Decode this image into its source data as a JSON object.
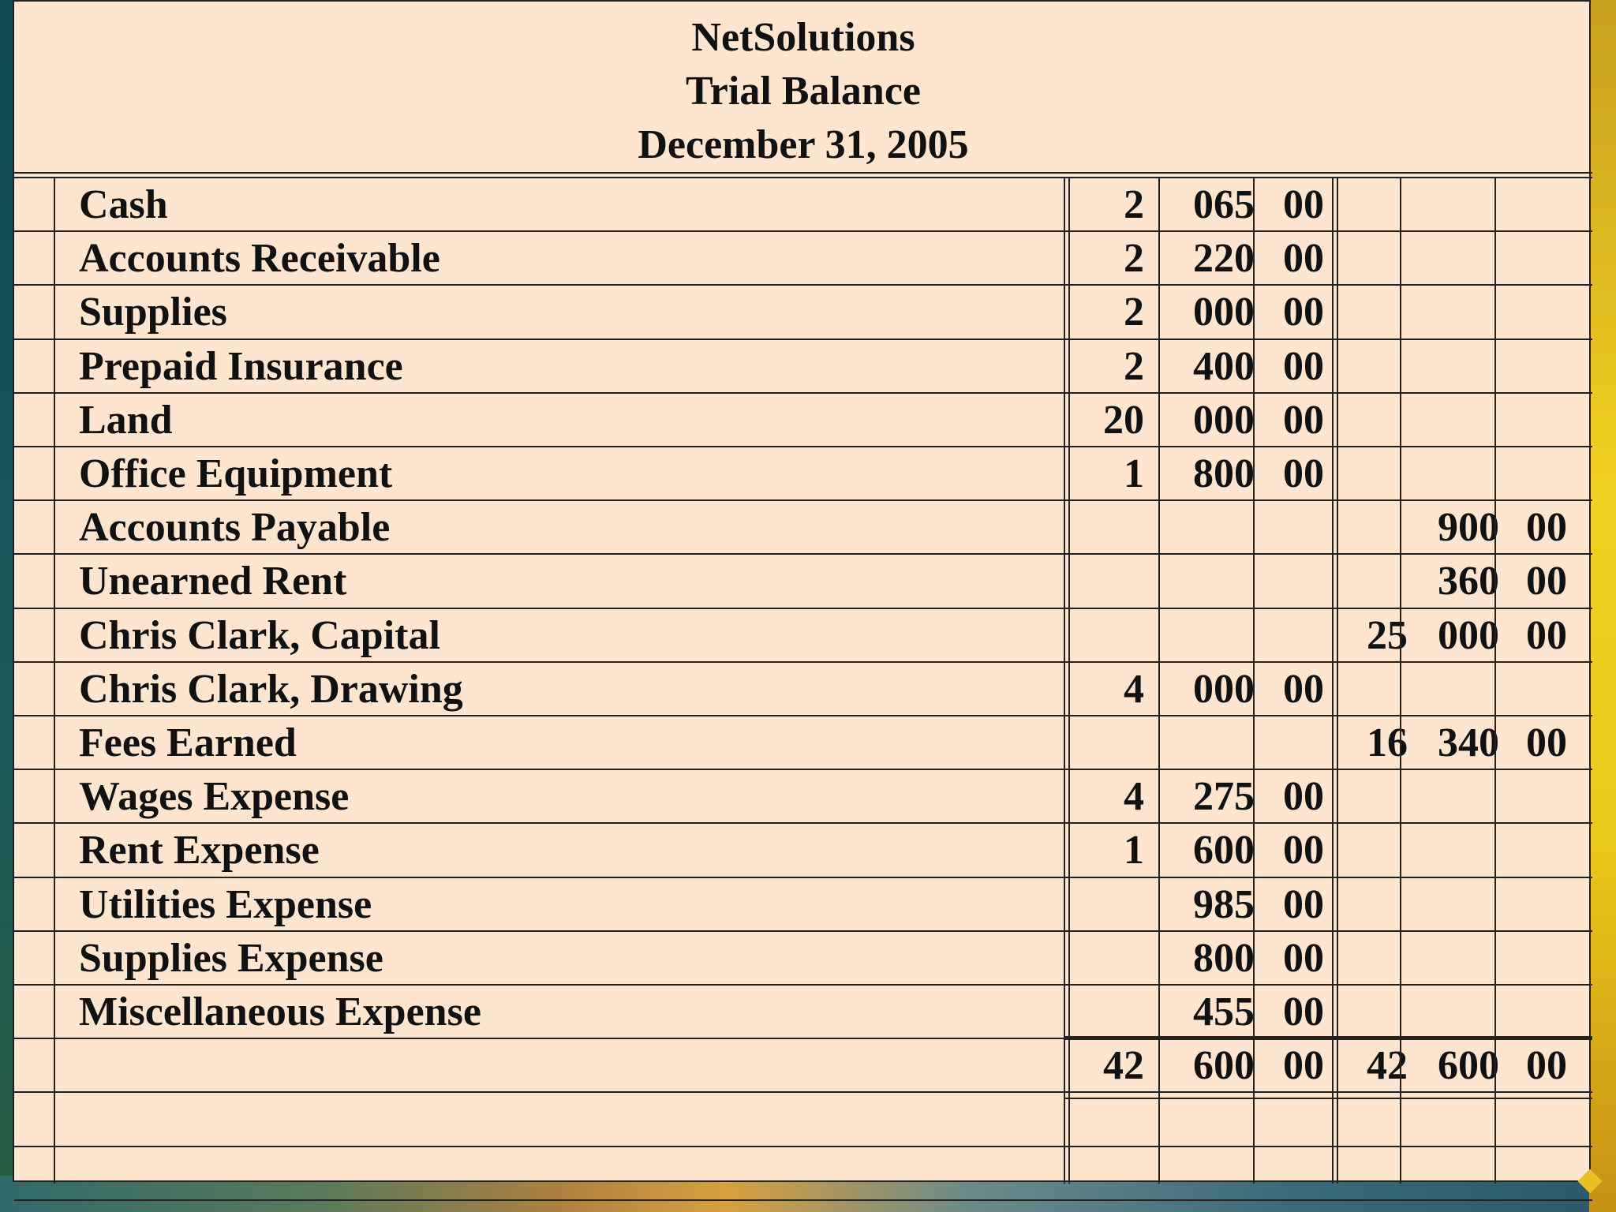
{
  "header": {
    "company": "NetSolutions",
    "report": "Trial Balance",
    "date": "December 31, 2005"
  },
  "rows": [
    {
      "account": "Cash",
      "debit": [
        "2",
        "065",
        "00"
      ],
      "credit": [
        "",
        "",
        ""
      ]
    },
    {
      "account": "Accounts Receivable",
      "debit": [
        "2",
        "220",
        "00"
      ],
      "credit": [
        "",
        "",
        ""
      ]
    },
    {
      "account": "Supplies",
      "debit": [
        "2",
        "000",
        "00"
      ],
      "credit": [
        "",
        "",
        ""
      ]
    },
    {
      "account": "Prepaid Insurance",
      "debit": [
        "2",
        "400",
        "00"
      ],
      "credit": [
        "",
        "",
        ""
      ]
    },
    {
      "account": "Land",
      "debit": [
        "20",
        "000",
        "00"
      ],
      "credit": [
        "",
        "",
        ""
      ]
    },
    {
      "account": "Office Equipment",
      "debit": [
        "1",
        "800",
        "00"
      ],
      "credit": [
        "",
        "",
        ""
      ]
    },
    {
      "account": "Accounts Payable",
      "debit": [
        "",
        "",
        ""
      ],
      "credit": [
        "",
        "900",
        "00"
      ]
    },
    {
      "account": "Unearned Rent",
      "debit": [
        "",
        "",
        ""
      ],
      "credit": [
        "",
        "360",
        "00"
      ]
    },
    {
      "account": "Chris Clark, Capital",
      "debit": [
        "",
        "",
        ""
      ],
      "credit": [
        "25",
        "000",
        "00"
      ]
    },
    {
      "account": "Chris Clark, Drawing",
      "debit": [
        "4",
        "000",
        "00"
      ],
      "credit": [
        "",
        "",
        ""
      ]
    },
    {
      "account": "Fees Earned",
      "debit": [
        "",
        "",
        ""
      ],
      "credit": [
        "16",
        "340",
        "00"
      ]
    },
    {
      "account": "Wages Expense",
      "debit": [
        "4",
        "275",
        "00"
      ],
      "credit": [
        "",
        "",
        ""
      ]
    },
    {
      "account": "Rent Expense",
      "debit": [
        "1",
        "600",
        "00"
      ],
      "credit": [
        "",
        "",
        ""
      ]
    },
    {
      "account": "Utilities Expense",
      "debit": [
        "",
        "985",
        "00"
      ],
      "credit": [
        "",
        "",
        ""
      ]
    },
    {
      "account": "Supplies Expense",
      "debit": [
        "",
        "800",
        "00"
      ],
      "credit": [
        "",
        "",
        ""
      ]
    },
    {
      "account": "Miscellaneous Expense",
      "debit": [
        "",
        "455",
        "00"
      ],
      "credit": [
        "",
        "",
        ""
      ]
    }
  ],
  "totals": {
    "debit": [
      "42",
      "600",
      "00"
    ],
    "credit": [
      "42",
      "600",
      "00"
    ]
  }
}
